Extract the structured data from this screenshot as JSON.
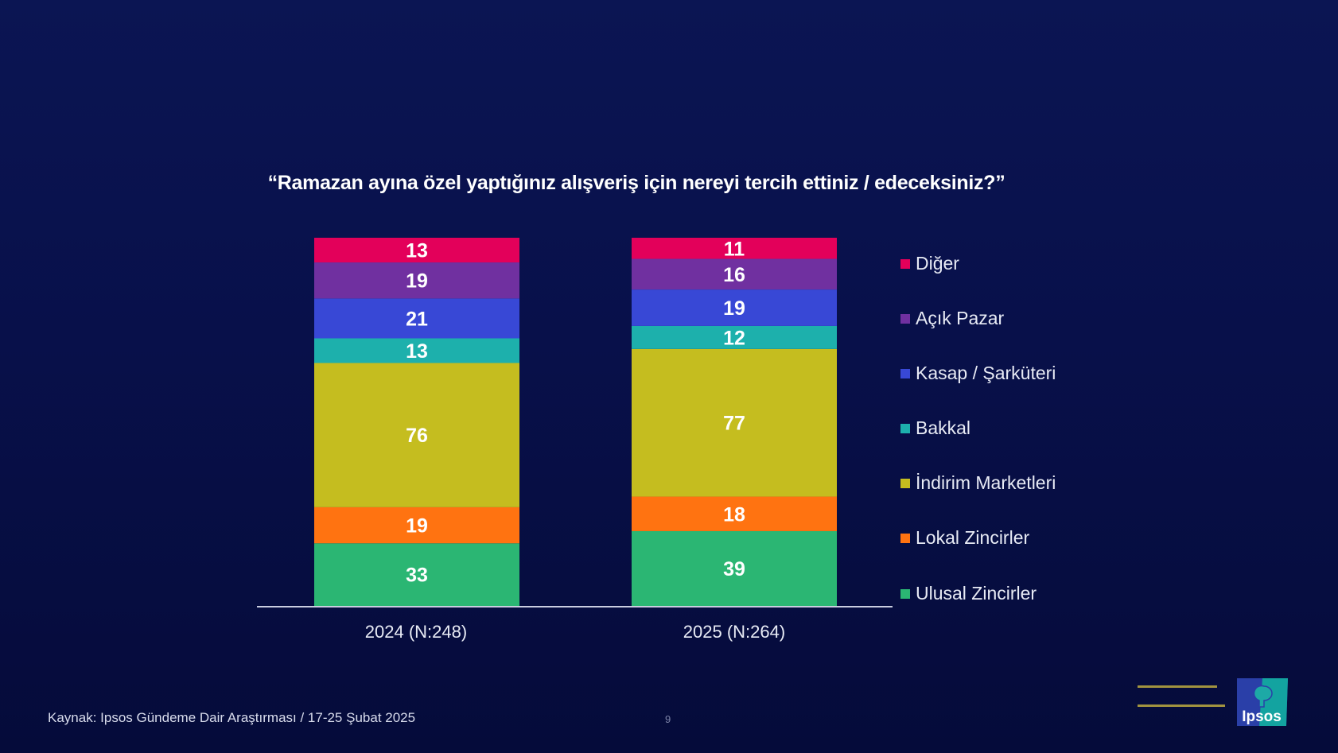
{
  "title": "“Ramazan ayına özel yaptığınız alışveriş için nereyi tercih ettiniz / edeceksiniz?”",
  "chart_data": {
    "type": "bar",
    "stacked": true,
    "categories": [
      "2024 (N:248)",
      "2025 (N:264)"
    ],
    "series": [
      {
        "name": "Ulusal Zincirler",
        "color": "#2bb673",
        "values": [
          33,
          39
        ]
      },
      {
        "name": "Lokal Zincirler",
        "color": "#ff7311",
        "values": [
          19,
          18
        ]
      },
      {
        "name": "İndirim Marketleri",
        "color": "#c5bd1f",
        "values": [
          76,
          77
        ]
      },
      {
        "name": "Bakkal",
        "color": "#1db0ac",
        "values": [
          13,
          12
        ]
      },
      {
        "name": "Kasap / Şarküteri",
        "color": "#3848d6",
        "values": [
          21,
          19
        ]
      },
      {
        "name": "Açık Pazar",
        "color": "#7030a0",
        "values": [
          19,
          16
        ]
      },
      {
        "name": "Diğer",
        "color": "#e3005a",
        "values": [
          13,
          11
        ]
      }
    ],
    "data_labels": true,
    "legend_position": "right",
    "grid": false
  },
  "footer": {
    "source": "Kaynak: Ipsos Gündeme Dair Araştırması / 17-25 Şubat 2025",
    "page_number": "9"
  },
  "logo": {
    "text": "Ipsos"
  }
}
